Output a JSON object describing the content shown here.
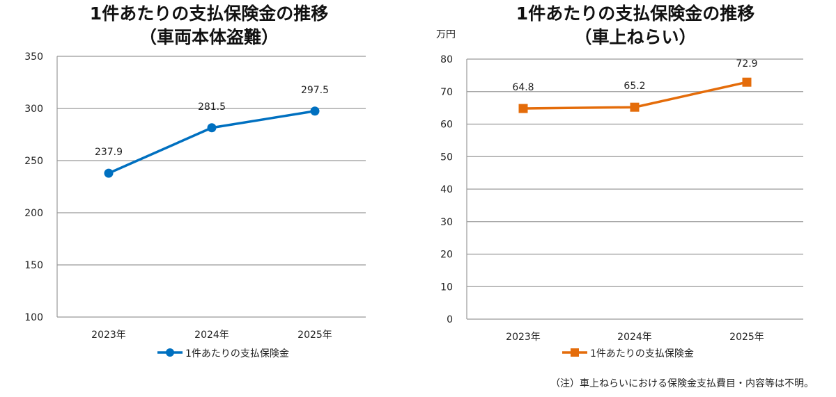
{
  "chart_data": [
    {
      "type": "line",
      "title": "1件あたりの支払保険金の推移",
      "subtitle": "（車両本体盗難）",
      "ylabel": "",
      "categories": [
        "2023年",
        "2024年",
        "2025年"
      ],
      "series": [
        {
          "name": "1件あたりの支払保険金",
          "values": [
            237.9,
            281.5,
            297.5
          ],
          "color": "#0070C0",
          "marker": "circle"
        }
      ],
      "ylim": [
        100,
        350
      ],
      "yticks": [
        100,
        150,
        200,
        250,
        300,
        350
      ],
      "grid": true,
      "legend": "bottom"
    },
    {
      "type": "line",
      "title": "1件あたりの支払保険金の推移",
      "subtitle": "（車上ねらい）",
      "ylabel": "万円",
      "categories": [
        "2023年",
        "2024年",
        "2025年"
      ],
      "series": [
        {
          "name": "1件あたりの支払保険金",
          "values": [
            64.8,
            65.2,
            72.9
          ],
          "color": "#E46C0A",
          "marker": "square"
        }
      ],
      "ylim": [
        0,
        80
      ],
      "yticks": [
        0,
        10,
        20,
        30,
        40,
        50,
        60,
        70,
        80
      ],
      "grid": true,
      "legend": "bottom",
      "note": "（注）車上ねらいにおける保険金支払費目・内容等は不明。"
    }
  ]
}
